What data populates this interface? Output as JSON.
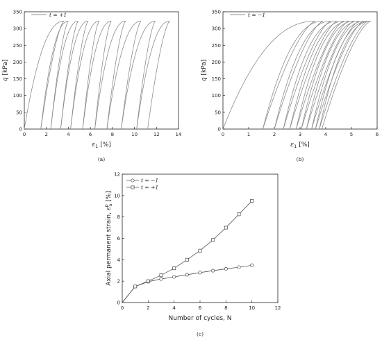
{
  "chart_data": [
    {
      "panel": "(a)",
      "type": "line",
      "description": "Loading-unloading stress-strain loops",
      "xlabel_symbol": "ε",
      "xlabel_sub": "1",
      "xlabel_unit": "[%]",
      "ylabel_symbol": "q",
      "ylabel_unit": "[kPa]",
      "xlim": [
        0,
        14
      ],
      "ylim": [
        0,
        350
      ],
      "xticks": [
        0,
        2,
        4,
        6,
        8,
        10,
        12,
        14
      ],
      "yticks": [
        0,
        50,
        100,
        150,
        200,
        250,
        300,
        350
      ],
      "q_max": 322,
      "legend": {
        "label": "t = +1",
        "position": "top-left"
      },
      "cycles": [
        {
          "load_start": 0.0,
          "peak": 3.6,
          "unload_end": 1.5
        },
        {
          "load_start": 1.5,
          "peak": 4.0,
          "unload_end": 2.4
        },
        {
          "load_start": 2.4,
          "peak": 4.9,
          "unload_end": 3.3
        },
        {
          "load_start": 3.3,
          "peak": 5.8,
          "unload_end": 4.2
        },
        {
          "load_start": 4.2,
          "peak": 6.8,
          "unload_end": 5.3
        },
        {
          "load_start": 5.3,
          "peak": 7.9,
          "unload_end": 6.4
        },
        {
          "load_start": 6.4,
          "peak": 9.2,
          "unload_end": 7.5
        },
        {
          "load_start": 7.5,
          "peak": 10.6,
          "unload_end": 8.8
        },
        {
          "load_start": 8.8,
          "peak": 11.9,
          "unload_end": 10.2
        },
        {
          "load_start": 10.2,
          "peak": 13.2,
          "unload_end": 11.2
        }
      ]
    },
    {
      "panel": "(b)",
      "type": "line",
      "description": "Loading-unloading stress-strain loops",
      "xlabel_symbol": "ε",
      "xlabel_sub": "1",
      "xlabel_unit": "[%]",
      "ylabel_symbol": "q",
      "ylabel_unit": "[kPa]",
      "xlim": [
        0,
        6
      ],
      "ylim": [
        0,
        350
      ],
      "xticks": [
        0,
        1,
        2,
        3,
        4,
        5,
        6
      ],
      "yticks": [
        0,
        50,
        100,
        150,
        200,
        250,
        300,
        350
      ],
      "q_max": 322,
      "legend": {
        "label": "t = −1",
        "position": "top-left"
      },
      "cycles": [
        {
          "load_start": 0.0,
          "peak": 3.6,
          "unload_end": 1.55
        },
        {
          "load_start": 1.55,
          "peak": 3.9,
          "unload_end": 2.0
        },
        {
          "load_start": 2.0,
          "peak": 4.2,
          "unload_end": 2.35
        },
        {
          "load_start": 2.35,
          "peak": 4.45,
          "unload_end": 2.6
        },
        {
          "load_start": 2.6,
          "peak": 4.7,
          "unload_end": 2.85
        },
        {
          "load_start": 2.85,
          "peak": 4.9,
          "unload_end": 3.05
        },
        {
          "load_start": 3.05,
          "peak": 5.1,
          "unload_end": 3.25
        },
        {
          "load_start": 3.25,
          "peak": 5.3,
          "unload_end": 3.45
        },
        {
          "load_start": 3.45,
          "peak": 5.5,
          "unload_end": 3.6
        },
        {
          "load_start": 3.6,
          "peak": 5.65,
          "unload_end": 3.75
        },
        {
          "load_start": 3.75,
          "peak": 5.75,
          "unload_end": 3.85
        }
      ]
    },
    {
      "panel": "(c)",
      "type": "line",
      "xlabel": "Number of cycles, N",
      "ylabel": "Axial permanent strain,",
      "ylabel_symbol": "ε",
      "ylabel_sup": "p",
      "ylabel_sub": "a",
      "ylabel_unit": "[%]",
      "xlim": [
        0,
        12
      ],
      "ylim": [
        0,
        12
      ],
      "xticks": [
        0,
        2,
        4,
        6,
        8,
        10,
        12
      ],
      "yticks": [
        0,
        2,
        4,
        6,
        8,
        10,
        12
      ],
      "legend_position": "top-left",
      "series": [
        {
          "name": "t = −1",
          "marker": "circle",
          "x": [
            0,
            1,
            2,
            3,
            4,
            5,
            6,
            7,
            8,
            9,
            10
          ],
          "y": [
            0,
            1.5,
            1.95,
            2.2,
            2.4,
            2.6,
            2.8,
            2.98,
            3.15,
            3.3,
            3.48
          ]
        },
        {
          "name": "t = +1",
          "marker": "square",
          "x": [
            0,
            1,
            2,
            3,
            4,
            5,
            6,
            7,
            8,
            9,
            10
          ],
          "y": [
            0,
            1.5,
            2.0,
            2.55,
            3.2,
            4.0,
            4.85,
            5.85,
            7.0,
            8.25,
            9.5
          ]
        }
      ]
    }
  ]
}
